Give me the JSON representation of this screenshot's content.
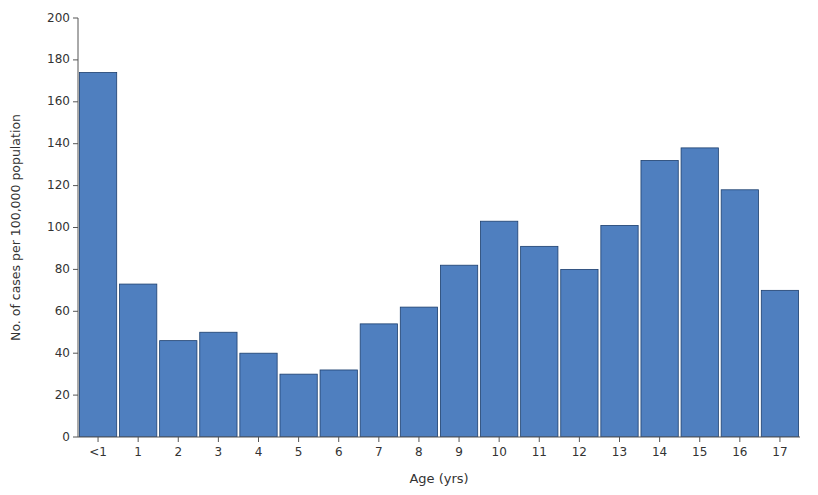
{
  "chart_data": {
    "type": "bar",
    "categories": [
      "<1",
      "1",
      "2",
      "3",
      "4",
      "5",
      "6",
      "7",
      "8",
      "9",
      "10",
      "11",
      "12",
      "13",
      "14",
      "15",
      "16",
      "17"
    ],
    "values": [
      174,
      73,
      46,
      50,
      40,
      30,
      32,
      54,
      62,
      82,
      103,
      91,
      80,
      101,
      132,
      138,
      118,
      70
    ],
    "color": "#4f7fbf",
    "xlabel": "Age (yrs)",
    "ylabel": "No. of cases per 100,000 population",
    "ylim": [
      0,
      200
    ],
    "yticks": [
      0,
      20,
      40,
      60,
      80,
      100,
      120,
      140,
      160,
      180,
      200
    ],
    "grid": false
  }
}
